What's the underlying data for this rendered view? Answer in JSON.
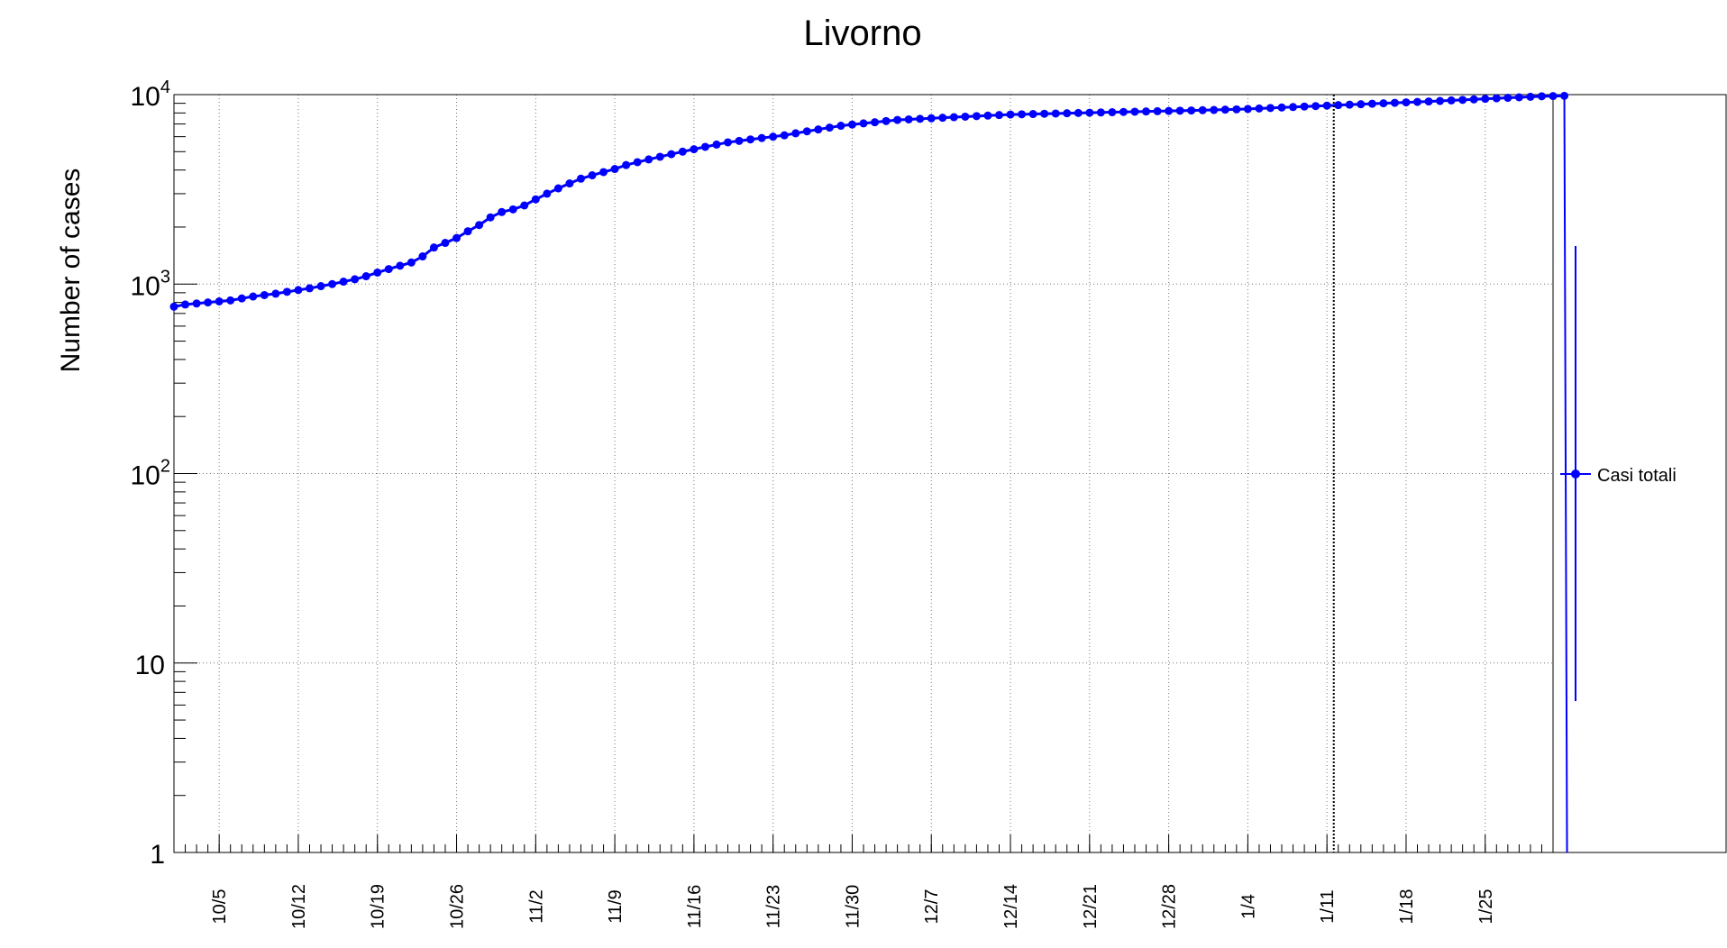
{
  "chart_data": {
    "type": "line",
    "title": "Livorno",
    "ylabel": "Number of cases",
    "xlabel": "",
    "y_scale": "log",
    "ylim": [
      1,
      10000
    ],
    "xlim": [
      "2020-10-01",
      "2021-01-31"
    ],
    "grid": true,
    "legend_position": "right",
    "x_tick_labels": [
      "10/5",
      "10/12",
      "10/19",
      "10/26",
      "11/2",
      "11/9",
      "11/16",
      "11/23",
      "11/30",
      "12/7",
      "12/14",
      "12/21",
      "12/28",
      "1/4",
      "1/11",
      "1/18",
      "1/25"
    ],
    "x_tick_dates": [
      "2020-10-05",
      "2020-10-12",
      "2020-10-19",
      "2020-10-26",
      "2020-11-02",
      "2020-11-09",
      "2020-11-16",
      "2020-11-23",
      "2020-11-30",
      "2020-12-07",
      "2020-12-14",
      "2020-12-21",
      "2020-12-28",
      "2021-01-04",
      "2021-01-11",
      "2021-01-18",
      "2021-01-25"
    ],
    "y_tick_labels": [
      {
        "value": 1,
        "base": "1",
        "exp": ""
      },
      {
        "value": 10,
        "base": "10",
        "exp": ""
      },
      {
        "value": 100,
        "base": "10",
        "exp": "2"
      },
      {
        "value": 1000,
        "base": "10",
        "exp": "3"
      },
      {
        "value": 10000,
        "base": "10",
        "exp": "4"
      }
    ],
    "series": [
      {
        "name": "Casi totali",
        "color": "#0000ff",
        "x_start": "2020-10-01",
        "x_step_days": 1,
        "y": [
          760,
          780,
          790,
          800,
          810,
          820,
          840,
          860,
          875,
          890,
          910,
          930,
          950,
          975,
          1000,
          1030,
          1060,
          1100,
          1150,
          1200,
          1250,
          1300,
          1400,
          1560,
          1650,
          1750,
          1900,
          2050,
          2250,
          2400,
          2480,
          2600,
          2800,
          3000,
          3200,
          3400,
          3600,
          3750,
          3900,
          4050,
          4250,
          4400,
          4550,
          4700,
          4850,
          5000,
          5150,
          5300,
          5450,
          5600,
          5700,
          5800,
          5900,
          6000,
          6100,
          6250,
          6400,
          6550,
          6700,
          6850,
          6950,
          7050,
          7150,
          7250,
          7350,
          7400,
          7450,
          7500,
          7550,
          7600,
          7650,
          7700,
          7750,
          7800,
          7850,
          7875,
          7900,
          7925,
          7950,
          7975,
          8000,
          8025,
          8050,
          8075,
          8100,
          8125,
          8150,
          8175,
          8200,
          8225,
          8250,
          8275,
          8300,
          8330,
          8360,
          8400,
          8450,
          8500,
          8550,
          8600,
          8650,
          8700,
          8750,
          8800,
          8850,
          8900,
          8950,
          9000,
          9050,
          9100,
          9150,
          9200,
          9260,
          9320,
          9380,
          9440,
          9500,
          9560,
          9620,
          9680,
          9740,
          9800,
          9830,
          9850
        ]
      }
    ],
    "marker_line_date": "2021-01-12"
  },
  "legend": {
    "label": "Casi totali"
  }
}
